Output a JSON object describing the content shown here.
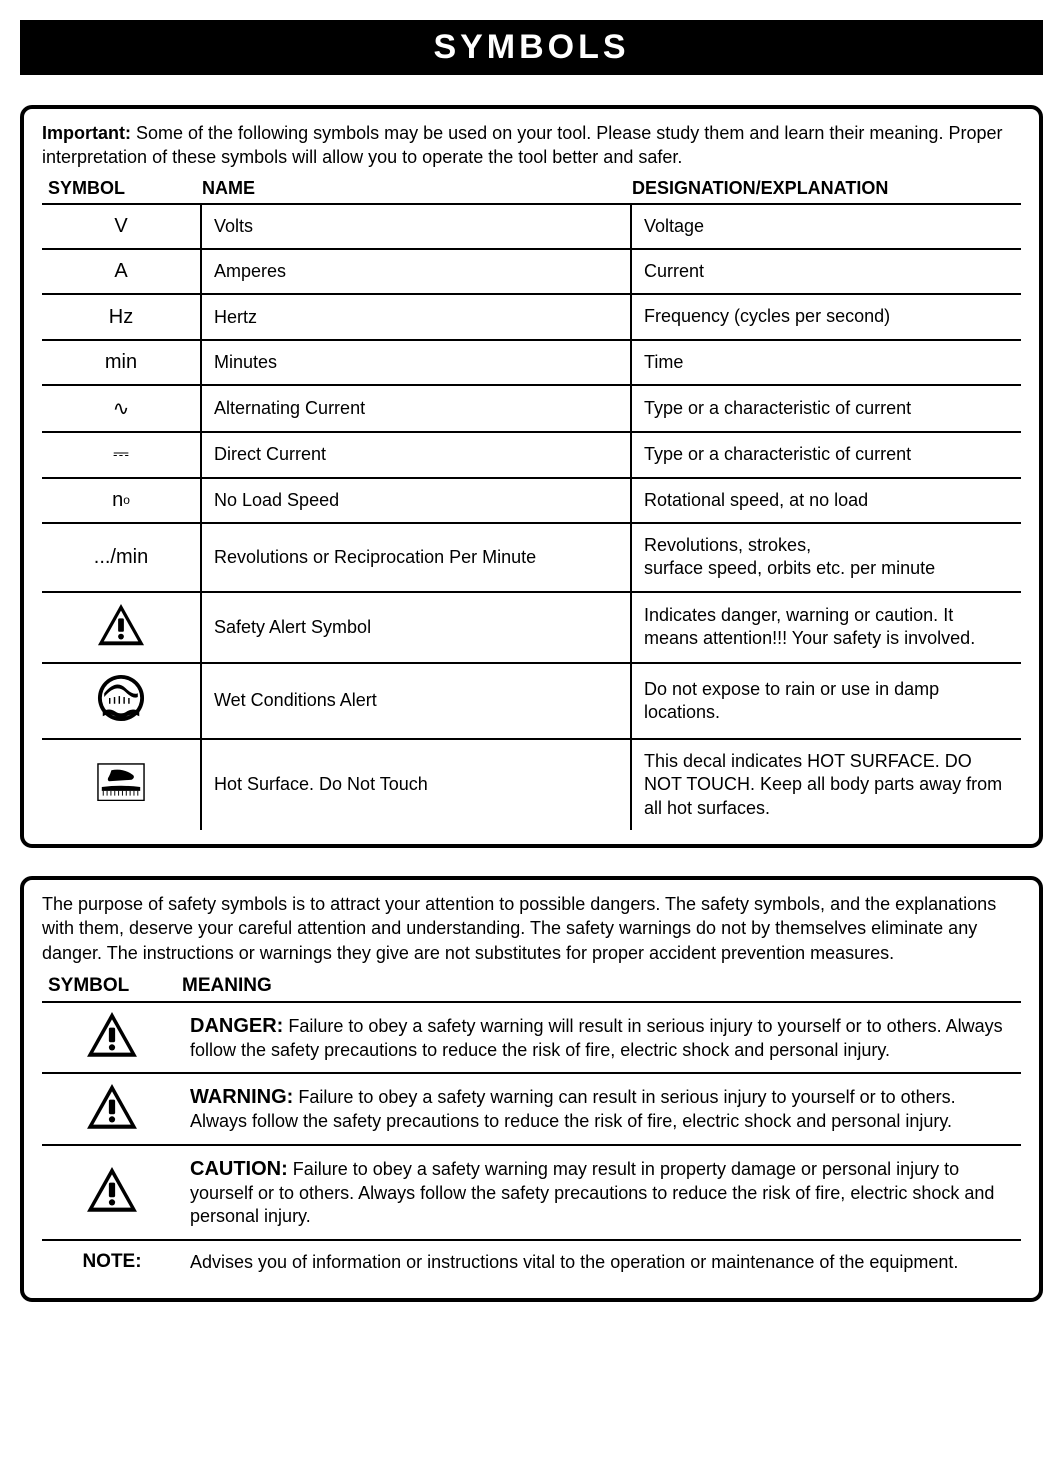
{
  "title": "SYMBOLS",
  "intro_bold": "Important:",
  "intro_text": " Some of the following symbols may be used on your tool. Please study them and learn their meaning. Proper interpretation of these symbols will allow you to operate the tool better and safer.",
  "headers": {
    "symbol": "SYMBOL",
    "name": "NAME",
    "desig": "DESIGNATION/EXPLANATION"
  },
  "rows": [
    {
      "symbol_text": "V",
      "name": "Volts",
      "desc": "Voltage"
    },
    {
      "symbol_text": "A",
      "name": "Amperes",
      "desc": "Current"
    },
    {
      "symbol_text": "Hz",
      "name": "Hertz",
      "desc": "Frequency (cycles per second)"
    },
    {
      "symbol_text": "min",
      "name": "Minutes",
      "desc": "Time"
    },
    {
      "symbol_text": "∿",
      "name": "Alternating Current",
      "desc": "Type or a characteristic of current"
    },
    {
      "symbol_text": "⎓",
      "name": "Direct Current",
      "desc": "Type or a characteristic of current"
    },
    {
      "symbol_html": "n<span class=\"sub\">o</span>",
      "name": "No Load Speed",
      "desc": "Rotational speed, at no load"
    },
    {
      "symbol_text": ".../min",
      "name": "Revolutions or Reciprocation Per Minute",
      "desc": "Revolutions, strokes,\nsurface speed, orbits etc. per minute"
    },
    {
      "symbol_icon": "alert",
      "name": "Safety Alert Symbol",
      "desc": "Indicates danger, warning or caution. It means attention!!! Your safety is involved."
    },
    {
      "symbol_icon": "wet",
      "name": "Wet Conditions Alert",
      "desc": "Do not expose to rain or use in damp locations."
    },
    {
      "symbol_icon": "hot",
      "name": "Hot Surface. Do Not Touch",
      "desc": "This decal indicates HOT SURFACE. DO NOT TOUCH. Keep all body parts away from all hot surfaces."
    }
  ],
  "purpose": "The purpose of safety symbols is to attract your attention to possible dangers. The safety symbols, and the explanations with them, deserve your careful attention and understanding. The safety warnings do not by themselves eliminate any danger. The instructions or warnings they give are not substitutes for proper accident prevention measures.",
  "headers2": {
    "symbol": "SYMBOL",
    "meaning": "MEANING"
  },
  "warnings": [
    {
      "icon": "alert",
      "label": "DANGER:",
      "text": " Failure to obey a safety warning will result in serious injury to yourself or to others. Always follow the safety precautions to reduce the risk of fire, electric shock and personal injury."
    },
    {
      "icon": "alert",
      "label": "WARNING:",
      "text": " Failure to obey a safety warning can result in serious injury to yourself or to others. Always follow the safety precautions to reduce the risk of fire, electric shock and personal injury."
    },
    {
      "icon": "alert",
      "label": "CAUTION:",
      "text": " Failure to obey a safety warning may result in property damage or personal injury to yourself or to others. Always follow the safety precautions to reduce the risk of fire, electric shock and personal injury."
    },
    {
      "note": "NOTE:",
      "text": "Advises you of information or instructions vital to the operation or maintenance of the equipment."
    }
  ],
  "colors": {
    "bg": "#ffffff",
    "fg": "#000000"
  }
}
